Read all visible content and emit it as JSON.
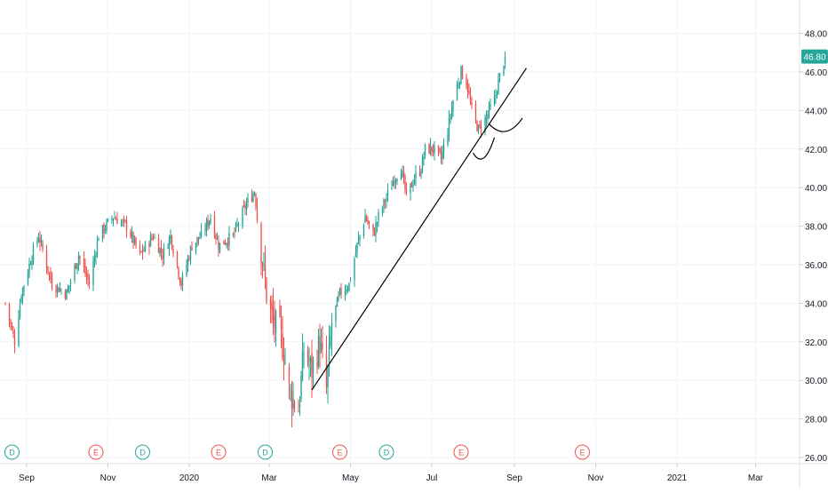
{
  "chart_data": {
    "type": "candlestick",
    "price_axis": {
      "range": [
        25.5,
        50.0
      ],
      "ticks": [
        "26.00",
        "28.00",
        "30.00",
        "32.00",
        "34.00",
        "36.00",
        "38.00",
        "40.00",
        "42.00",
        "44.00",
        "46.00",
        "48.00"
      ],
      "tick_values": [
        26,
        28,
        30,
        32,
        34,
        36,
        38,
        40,
        42,
        44,
        46,
        48
      ]
    },
    "last_price": {
      "label": "46.80",
      "value": 46.8
    },
    "time_axis": {
      "range": [
        "2019-08-16",
        "2021-04-05"
      ],
      "ticks": [
        {
          "label": "Sep",
          "date": "2019-09-01"
        },
        {
          "label": "Nov",
          "date": "2019-11-01"
        },
        {
          "label": "2020",
          "date": "2020-01-01"
        },
        {
          "label": "Mar",
          "date": "2020-03-01"
        },
        {
          "label": "May",
          "date": "2020-05-01"
        },
        {
          "label": "Jul",
          "date": "2020-07-01"
        },
        {
          "label": "Sep",
          "date": "2020-09-01"
        },
        {
          "label": "Nov",
          "date": "2020-11-01"
        },
        {
          "label": "2021",
          "date": "2021-01-01"
        },
        {
          "label": "Mar",
          "date": "2021-03-01"
        }
      ]
    },
    "grid": true,
    "close_series": {
      "start": "2019-08-16",
      "end": "2020-08-25",
      "keypoints": [
        [
          "2019-08-16",
          34.0
        ],
        [
          "2019-08-23",
          32.0
        ],
        [
          "2019-08-28",
          34.5
        ],
        [
          "2019-09-05",
          36.5
        ],
        [
          "2019-09-10",
          37.5
        ],
        [
          "2019-09-20",
          35.0
        ],
        [
          "2019-10-01",
          34.5
        ],
        [
          "2019-10-10",
          36.5
        ],
        [
          "2019-10-18",
          35.0
        ],
        [
          "2019-10-25",
          37.5
        ],
        [
          "2019-11-05",
          38.5
        ],
        [
          "2019-11-15",
          38.0
        ],
        [
          "2019-11-25",
          36.5
        ],
        [
          "2019-12-05",
          37.5
        ],
        [
          "2019-12-12",
          36.5
        ],
        [
          "2019-12-18",
          37.5
        ],
        [
          "2019-12-26",
          35.0
        ],
        [
          "2020-01-03",
          37.0
        ],
        [
          "2020-01-10",
          37.5
        ],
        [
          "2020-01-17",
          38.5
        ],
        [
          "2020-01-23",
          37.0
        ],
        [
          "2020-02-03",
          37.5
        ],
        [
          "2020-02-12",
          39.0
        ],
        [
          "2020-02-19",
          39.8
        ],
        [
          "2020-02-24",
          36.8
        ],
        [
          "2020-02-28",
          34.5
        ],
        [
          "2020-03-04",
          33.0
        ],
        [
          "2020-03-09",
          32.5
        ],
        [
          "2020-03-12",
          31.5
        ],
        [
          "2020-03-16",
          29.5
        ],
        [
          "2020-03-19",
          29.0
        ],
        [
          "2020-03-23",
          28.5
        ],
        [
          "2020-03-27",
          31.5
        ],
        [
          "2020-04-02",
          30.5
        ],
        [
          "2020-04-08",
          32.0
        ],
        [
          "2020-04-13",
          29.5
        ],
        [
          "2020-04-17",
          33.0
        ],
        [
          "2020-04-23",
          34.5
        ],
        [
          "2020-04-30",
          35.0
        ],
        [
          "2020-05-06",
          37.0
        ],
        [
          "2020-05-12",
          38.5
        ],
        [
          "2020-05-18",
          37.5
        ],
        [
          "2020-05-22",
          38.5
        ],
        [
          "2020-05-28",
          39.5
        ],
        [
          "2020-06-03",
          40.5
        ],
        [
          "2020-06-08",
          41.0
        ],
        [
          "2020-06-12",
          39.5
        ],
        [
          "2020-06-18",
          40.5
        ],
        [
          "2020-06-23",
          41.0
        ],
        [
          "2020-06-26",
          42.0
        ],
        [
          "2020-07-02",
          42.0
        ],
        [
          "2020-07-08",
          41.5
        ],
        [
          "2020-07-13",
          43.0
        ],
        [
          "2020-07-17",
          44.5
        ],
        [
          "2020-07-23",
          46.0
        ],
        [
          "2020-07-27",
          45.5
        ],
        [
          "2020-07-31",
          44.0
        ],
        [
          "2020-08-05",
          43.0
        ],
        [
          "2020-08-10",
          43.5
        ],
        [
          "2020-08-13",
          44.0
        ],
        [
          "2020-08-17",
          44.5
        ],
        [
          "2020-08-20",
          45.5
        ],
        [
          "2020-08-25",
          46.8
        ]
      ]
    },
    "drawings": {
      "trendline": {
        "from": {
          "date": "2020-04-02",
          "price": 29.5
        },
        "to": {
          "date": "2020-09-10",
          "price": 46.2
        }
      },
      "arcs": [
        {
          "from": {
            "date": "2020-08-13",
            "price": 43.3
          },
          "to": {
            "date": "2020-09-07",
            "price": 43.6
          }
        },
        {
          "from": {
            "date": "2020-08-01",
            "price": 41.8
          },
          "to": {
            "date": "2020-08-17",
            "price": 42.6
          }
        }
      ]
    },
    "events": [
      {
        "label": "D",
        "date": "2019-08-21",
        "kind": "dividend"
      },
      {
        "label": "E",
        "date": "2019-10-23",
        "kind": "earnings"
      },
      {
        "label": "D",
        "date": "2019-11-27",
        "kind": "dividend"
      },
      {
        "label": "E",
        "date": "2020-01-23",
        "kind": "earnings"
      },
      {
        "label": "D",
        "date": "2020-02-27",
        "kind": "dividend"
      },
      {
        "label": "E",
        "date": "2020-04-23",
        "kind": "earnings"
      },
      {
        "label": "D",
        "date": "2020-05-28",
        "kind": "dividend"
      },
      {
        "label": "E",
        "date": "2020-07-23",
        "kind": "earnings"
      },
      {
        "label": "E",
        "date": "2020-10-22",
        "kind": "earnings"
      }
    ],
    "colors": {
      "up": "#26a69a",
      "down": "#ef5350",
      "background": "#ffffff",
      "grid": "#f0f3fa",
      "axis_text": "#131722",
      "drawing": "#000000",
      "dividend": "#26a69a",
      "earnings": "#ef5350"
    }
  }
}
